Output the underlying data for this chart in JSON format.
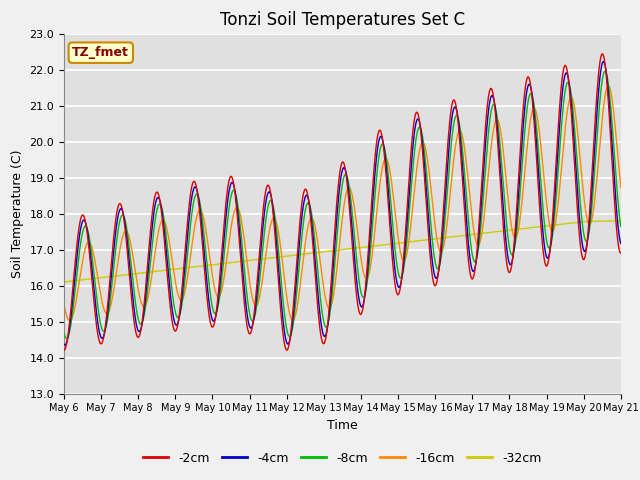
{
  "title": "Tonzi Soil Temperatures Set C",
  "xlabel": "Time",
  "ylabel": "Soil Temperature (C)",
  "ylim": [
    13.0,
    23.0
  ],
  "yticks": [
    13.0,
    14.0,
    15.0,
    16.0,
    17.0,
    18.0,
    19.0,
    20.0,
    21.0,
    22.0,
    23.0
  ],
  "xtick_labels": [
    "May 6",
    "May 7",
    "May 8",
    "May 9",
    "May 10",
    "May 11",
    "May 12",
    "May 13",
    "May 14",
    "May 15",
    "May 16",
    "May 17",
    "May 18",
    "May 19",
    "May 20",
    "May 21"
  ],
  "series_colors": [
    "#dd0000",
    "#0000cc",
    "#00bb00",
    "#ff8800",
    "#cccc00"
  ],
  "series_labels": [
    "-2cm",
    "-4cm",
    "-8cm",
    "-16cm",
    "-32cm"
  ],
  "annotation_text": "TZ_fmet",
  "annotation_bg": "#ffffcc",
  "annotation_border": "#cc8800",
  "bg_color": "#e0e0e0",
  "grid_color": "#ffffff",
  "fig_bg_color": "#f0f0f0",
  "title_fontsize": 12,
  "axis_label_fontsize": 9,
  "tick_fontsize": 8,
  "legend_fontsize": 9,
  "linewidth": 1.0
}
